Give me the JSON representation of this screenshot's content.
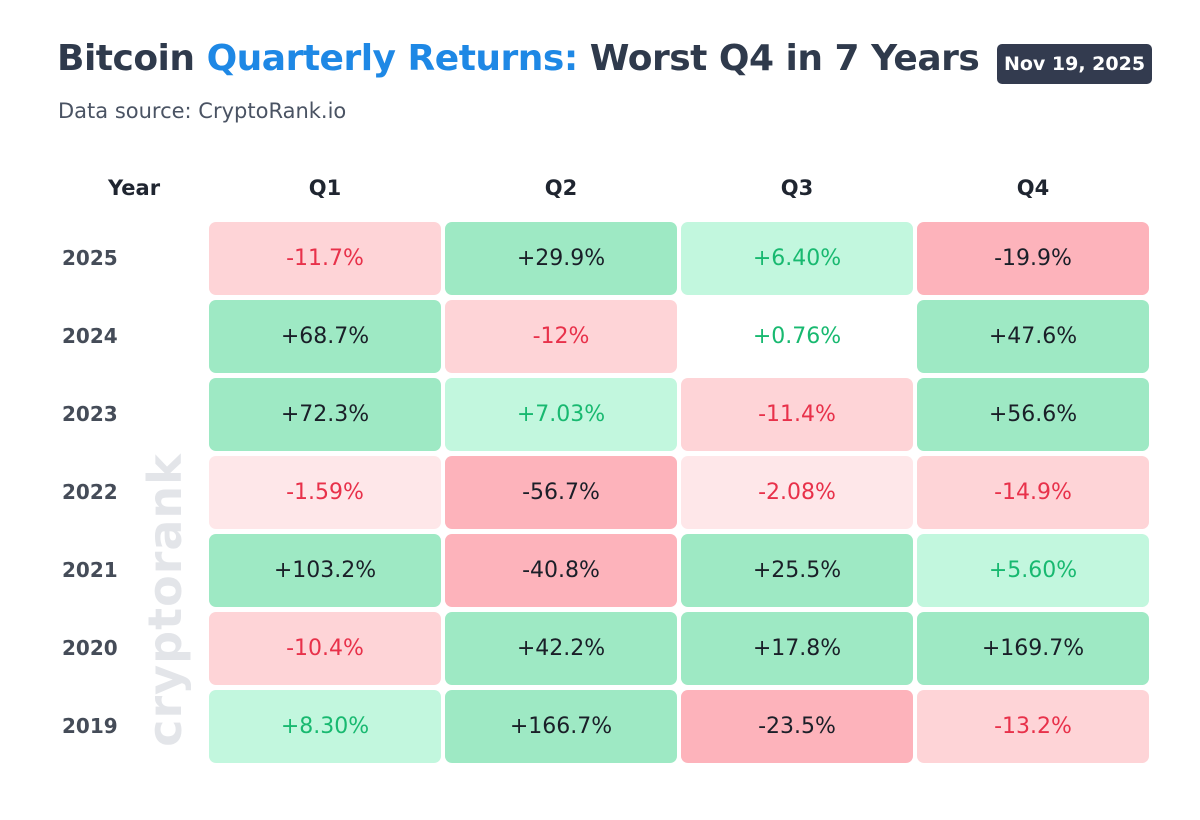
{
  "header": {
    "title_part1": "Bitcoin ",
    "title_accent": "Quarterly Returns:",
    "title_part2": " Worst Q4 in 7 Years",
    "subtitle": "Data source: CryptoRank.io",
    "date": "Nov 19, 2025",
    "watermark": "cryptorank"
  },
  "colors": {
    "title": "#2f3a4c",
    "accent": "#1e88e5",
    "badge": "#333b4f",
    "strong_green": "#9ee9c4",
    "light_green": "#c2f7de",
    "green_text": "#18b970",
    "light_red": "#fed4d7",
    "strong_red": "#fdb3bb",
    "red_text": "#e8314a"
  },
  "chart_data": {
    "type": "table",
    "title": "Bitcoin Quarterly Returns: Worst Q4 in 7 Years",
    "subtitle": "Data source: CryptoRank.io",
    "row_header": "Year",
    "columns": [
      "Q1",
      "Q2",
      "Q3",
      "Q4"
    ],
    "rows": [
      {
        "year": "2025",
        "values": [
          "-11.7%",
          "+29.9%",
          "+6.40%",
          "-19.9%"
        ],
        "levels": [
          "red",
          "green-strong",
          "green",
          "red-strong"
        ]
      },
      {
        "year": "2024",
        "values": [
          "+68.7%",
          "-12%",
          "+0.76%",
          "+47.6%"
        ],
        "levels": [
          "green-strong",
          "red",
          "neutral",
          "green-strong"
        ]
      },
      {
        "year": "2023",
        "values": [
          "+72.3%",
          "+7.03%",
          "-11.4%",
          "+56.6%"
        ],
        "levels": [
          "green-strong",
          "green",
          "red",
          "green-strong"
        ]
      },
      {
        "year": "2022",
        "values": [
          "-1.59%",
          "-56.7%",
          "-2.08%",
          "-14.9%"
        ],
        "levels": [
          "red-light",
          "red-strong",
          "red-light",
          "red"
        ]
      },
      {
        "year": "2021",
        "values": [
          "+103.2%",
          "-40.8%",
          "+25.5%",
          "+5.60%"
        ],
        "levels": [
          "green-strong",
          "red-strong",
          "green-strong",
          "green"
        ]
      },
      {
        "year": "2020",
        "values": [
          "-10.4%",
          "+42.2%",
          "+17.8%",
          "+169.7%"
        ],
        "levels": [
          "red",
          "green-strong",
          "green-strong",
          "green-strong"
        ]
      },
      {
        "year": "2019",
        "values": [
          "+8.30%",
          "+166.7%",
          "-23.5%",
          "-13.2%"
        ],
        "levels": [
          "green",
          "green-strong",
          "red-strong",
          "red"
        ]
      }
    ]
  }
}
